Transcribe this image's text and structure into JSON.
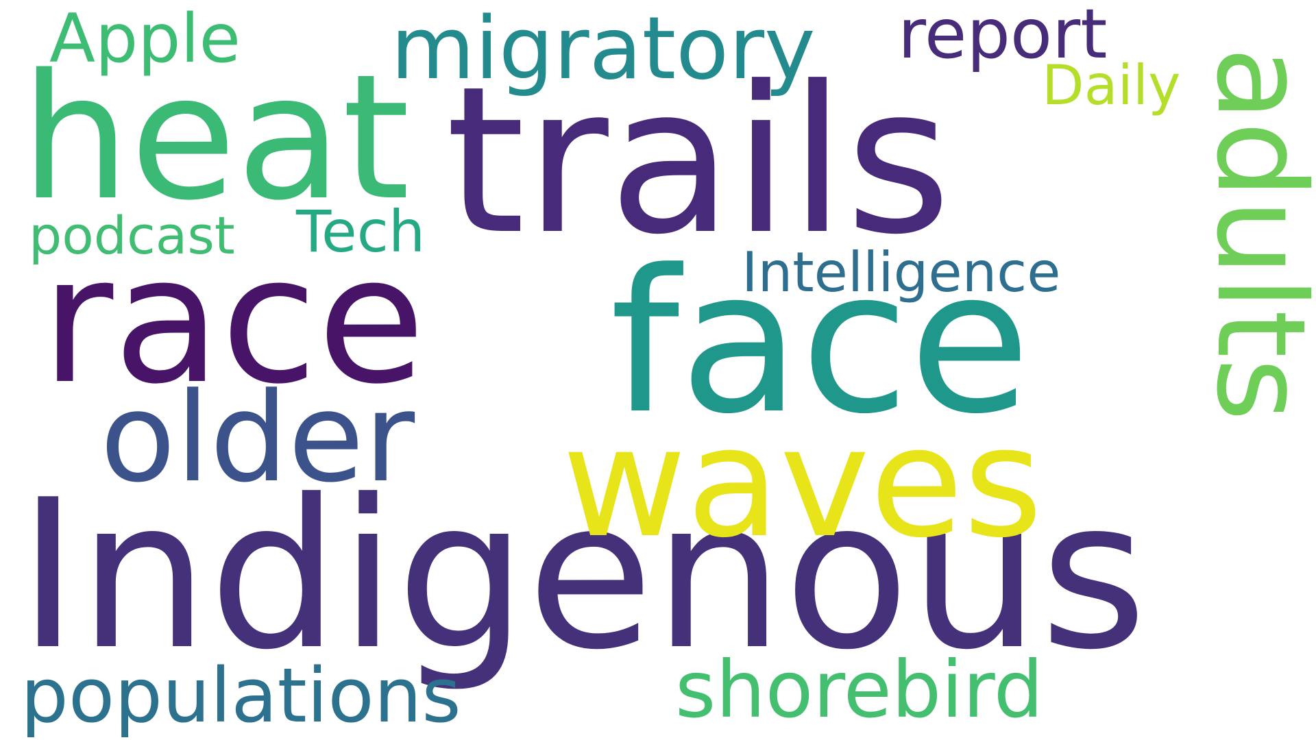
{
  "words": [
    {
      "text": "Indigenous",
      "color": "#45307a",
      "orientation": "horizontal"
    },
    {
      "text": "trails",
      "color": "#472a7a",
      "orientation": "horizontal"
    },
    {
      "text": "face",
      "color": "#1f978b",
      "orientation": "horizontal"
    },
    {
      "text": "race",
      "color": "#481467",
      "orientation": "horizontal"
    },
    {
      "text": "heat",
      "color": "#3bba75",
      "orientation": "horizontal"
    },
    {
      "text": "waves",
      "color": "#e7e419",
      "orientation": "horizontal"
    },
    {
      "text": "older",
      "color": "#3b528b",
      "orientation": "horizontal"
    },
    {
      "text": "adults",
      "color": "#6ece58",
      "orientation": "vertical"
    },
    {
      "text": "migratory",
      "color": "#238a8d",
      "orientation": "horizontal"
    },
    {
      "text": "shorebird",
      "color": "#44bf70",
      "orientation": "horizontal"
    },
    {
      "text": "populations",
      "color": "#2c728e",
      "orientation": "horizontal"
    },
    {
      "text": "report",
      "color": "#472c7a",
      "orientation": "horizontal"
    },
    {
      "text": "Apple",
      "color": "#3dbc74",
      "orientation": "horizontal"
    },
    {
      "text": "Tech",
      "color": "#25a984",
      "orientation": "horizontal"
    },
    {
      "text": "Intelligence",
      "color": "#2e6e8e",
      "orientation": "horizontal"
    },
    {
      "text": "Daily",
      "color": "#b5de2b",
      "orientation": "horizontal"
    },
    {
      "text": "podcast",
      "color": "#40bd72",
      "orientation": "horizontal"
    }
  ]
}
